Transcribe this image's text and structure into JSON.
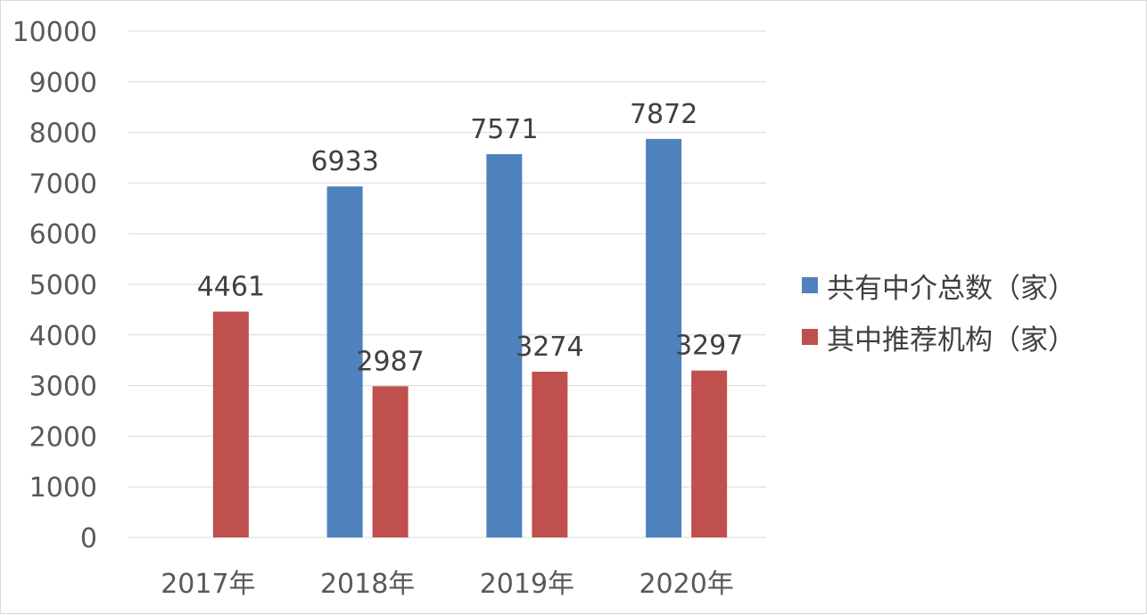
{
  "chart_data": {
    "type": "bar",
    "categories": [
      "2017年",
      "2018年",
      "2019年",
      "2020年"
    ],
    "series": [
      {
        "name": "共有中介总数（家）",
        "values": [
          null,
          6933,
          7571,
          7872
        ],
        "labels": [
          "",
          "6933",
          "7571",
          "7872"
        ],
        "color": "#4f81bd"
      },
      {
        "name": "其中推荐机构（家）",
        "values": [
          4461,
          2987,
          3274,
          3297
        ],
        "labels": [
          "4461",
          "2987",
          "3274",
          "3297"
        ],
        "color": "#c0504d"
      }
    ],
    "ylim": [
      0,
      10000
    ],
    "yticks": [
      "0",
      "1000",
      "2000",
      "3000",
      "4000",
      "5000",
      "6000",
      "7000",
      "8000",
      "9000",
      "10000"
    ],
    "grid": true,
    "legend_position": "right",
    "title": "",
    "xlabel": "",
    "ylabel": ""
  }
}
